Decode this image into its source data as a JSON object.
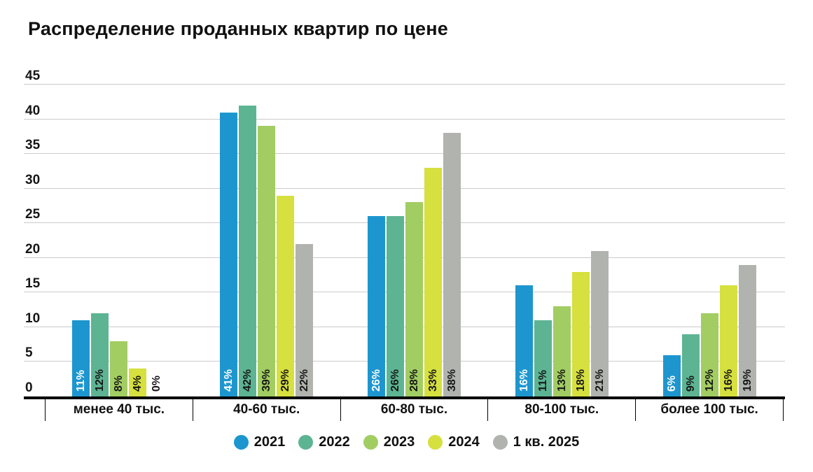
{
  "title": "Распределение проданных квартир по цене",
  "chart_data": {
    "type": "bar",
    "title": "Распределение проданных квартир по цене",
    "categories": [
      "менее 40 тыс.",
      "40-60 тыс.",
      "60-80 тыс.",
      "80-100 тыс.",
      "более 100 тыс."
    ],
    "series": [
      {
        "name": "2021",
        "color": "#1d96cf",
        "label_color": "#ffffff",
        "values": [
          11,
          41,
          26,
          16,
          6
        ]
      },
      {
        "name": "2022",
        "color": "#5db493",
        "label_color": "#161616",
        "values": [
          12,
          42,
          26,
          11,
          9
        ]
      },
      {
        "name": "2023",
        "color": "#a2cd62",
        "label_color": "#161616",
        "values": [
          8,
          39,
          28,
          13,
          12
        ]
      },
      {
        "name": "2024",
        "color": "#d6e03e",
        "label_color": "#161616",
        "values": [
          4,
          29,
          33,
          18,
          16
        ]
      },
      {
        "name": "1 кв. 2025",
        "color": "#b1b3ae",
        "label_color": "#161616",
        "values": [
          0,
          22,
          38,
          21,
          19
        ]
      }
    ],
    "unit": "%",
    "y_ticks": [
      45,
      40,
      35,
      30,
      25,
      20,
      15,
      10,
      5,
      0
    ],
    "ylim": [
      0,
      45
    ],
    "grid": "horizontal",
    "gridline_color": "#cbcbcb",
    "axis_color": "#000000",
    "legend_position": "bottom"
  }
}
